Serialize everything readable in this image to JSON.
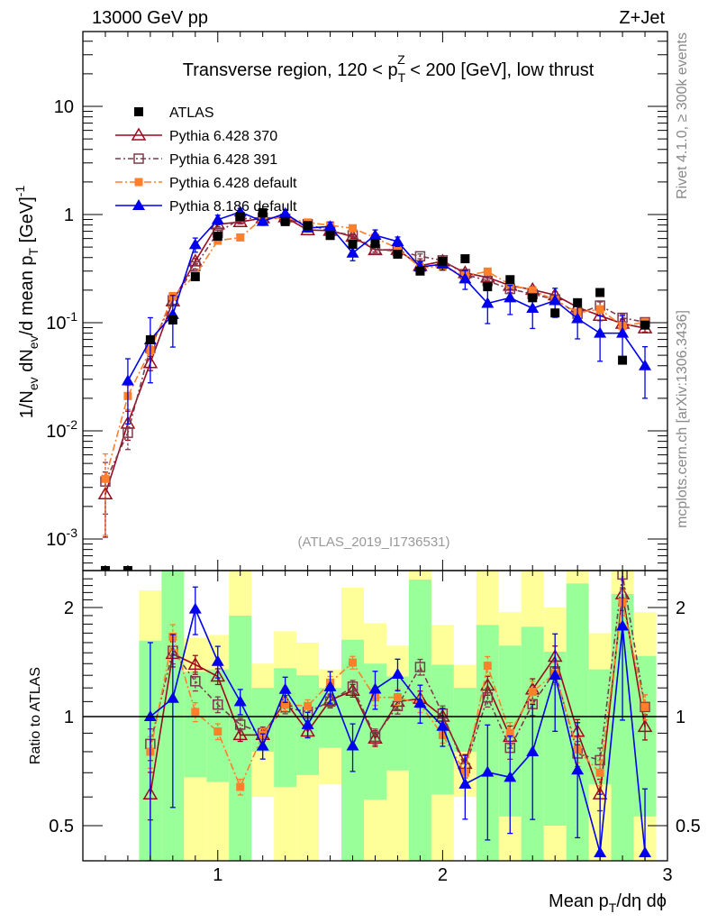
{
  "header": {
    "left": "13000 GeV pp",
    "right": "Z+Jet"
  },
  "side_text": {
    "rivet": "Rivet 4.1.0, ≥ 300k events",
    "mcplots": "mcplots.cern.ch [arXiv:1306.3436]"
  },
  "chart_data": {
    "type": "line",
    "title": {
      "pre": "Transverse region, 120 < p",
      "sub": "T",
      "sup": "Z",
      "post": " < 200 [GeV], low thrust"
    },
    "analysis_id": "(ATLAS_2019_I1736531)",
    "xlabel": {
      "pre": "Mean p",
      "sub": "T",
      "post": "/dη dϕ"
    },
    "ylabel": {
      "a": "1/N",
      "a_sub": "ev",
      "b": " dN",
      "b_sub": "ev",
      "c": "/d mean p",
      "c_sub": "T",
      "d": " [GeV]",
      "d_sup": "-1"
    },
    "ratio_ylabel": "Ratio to ATLAS",
    "xlim": [
      0.4,
      3.0
    ],
    "ylim": [
      0.00052,
      49
    ],
    "yscale": "log",
    "ratio_ylim": [
      0.4,
      2.5
    ],
    "ratio_yscale": "log",
    "x_ticks": [
      "1",
      "2",
      "3"
    ],
    "x_tick_values": [
      1,
      2,
      3
    ],
    "y_ticks": [
      {
        "value": 10,
        "base": "10",
        "exp": ""
      },
      {
        "value": 1,
        "base": "1",
        "exp": ""
      },
      {
        "value": 0.1,
        "base": "10",
        "exp": "-1"
      },
      {
        "value": 0.01,
        "base": "10",
        "exp": "-2"
      },
      {
        "value": 0.001,
        "base": "10",
        "exp": "-3"
      }
    ],
    "ratio_ticks": [
      {
        "value": 2,
        "label": "2"
      },
      {
        "value": 1,
        "label": "1"
      },
      {
        "value": 0.5,
        "label": "0.5"
      }
    ],
    "legend_position": "top-left",
    "x": [
      0.5,
      0.6,
      0.7,
      0.8,
      0.9,
      1.0,
      1.1,
      1.2,
      1.3,
      1.4,
      1.5,
      1.6,
      1.7,
      1.8,
      1.9,
      2.0,
      2.1,
      2.2,
      2.3,
      2.4,
      2.5,
      2.6,
      2.7,
      2.8,
      2.9
    ],
    "series": [
      {
        "name": "ATLAS",
        "style": "data",
        "color": "#000000",
        "values": [
          0.0004,
          0.0004,
          0.0695,
          0.106,
          0.266,
          0.63,
          0.96,
          1.04,
          0.86,
          0.79,
          0.64,
          0.53,
          0.54,
          0.43,
          0.3,
          0.37,
          0.39,
          0.215,
          0.25,
          0.17,
          0.123,
          0.153,
          0.19,
          0.045,
          0.095
        ]
      },
      {
        "name": "Pythia 6.428 370",
        "style": "tri-open",
        "color": "#9b0a1e",
        "dash": "",
        "values": [
          0.0026,
          0.0117,
          0.0424,
          0.158,
          0.37,
          0.813,
          0.854,
          0.926,
          0.946,
          0.719,
          0.71,
          0.625,
          0.47,
          0.473,
          0.336,
          0.37,
          0.289,
          0.262,
          0.22,
          0.202,
          0.18,
          0.139,
          0.116,
          0.098,
          0.089
        ],
        "rel_err": [
          0.6,
          0.3,
          0.15,
          0.08,
          0.06,
          0.05,
          0.04,
          0.04,
          0.04,
          0.04,
          0.04,
          0.04,
          0.05,
          0.05,
          0.05,
          0.05,
          0.06,
          0.06,
          0.07,
          0.07,
          0.07,
          0.08,
          0.1,
          0.1,
          0.08
        ]
      },
      {
        "name": "Pythia 6.428 391",
        "style": "sq-open",
        "color": "#7d3b4c",
        "dash": "6,3,2,3",
        "values": [
          0.0034,
          0.0096,
          0.0584,
          0.161,
          0.333,
          0.68,
          0.912,
          0.936,
          0.912,
          0.814,
          0.704,
          0.641,
          0.475,
          0.46,
          0.411,
          0.377,
          0.281,
          0.243,
          0.205,
          0.184,
          0.164,
          0.121,
          0.144,
          0.111,
          0.101
        ],
        "rel_err": [
          0.5,
          0.3,
          0.1,
          0.08,
          0.06,
          0.05,
          0.04,
          0.04,
          0.04,
          0.04,
          0.04,
          0.04,
          0.05,
          0.05,
          0.05,
          0.05,
          0.06,
          0.06,
          0.07,
          0.07,
          0.07,
          0.08,
          0.08,
          0.08,
          0.08
        ]
      },
      {
        "name": "Pythia 6.428 default",
        "style": "sq-fill",
        "color": "#ff7f2a",
        "dash": "8,3,2,3",
        "values": [
          0.0036,
          0.021,
          0.0556,
          0.176,
          0.274,
          0.573,
          0.614,
          0.926,
          0.929,
          0.845,
          0.794,
          0.747,
          0.61,
          0.486,
          0.324,
          0.329,
          0.273,
          0.297,
          0.225,
          0.199,
          0.162,
          0.124,
          0.133,
          0.093,
          0.101
        ],
        "rel_err": [
          0.7,
          0.25,
          0.1,
          0.08,
          0.06,
          0.05,
          0.05,
          0.04,
          0.04,
          0.04,
          0.04,
          0.04,
          0.05,
          0.05,
          0.05,
          0.05,
          0.06,
          0.06,
          0.07,
          0.07,
          0.07,
          0.08,
          0.08,
          0.08,
          0.08
        ]
      },
      {
        "name": "Pythia 8.186 default",
        "style": "tri-fill",
        "color": "#0000ee",
        "dash": "",
        "values": [
          null,
          0.029,
          0.0695,
          0.119,
          0.527,
          0.895,
          1.056,
          0.863,
          1.023,
          0.751,
          0.774,
          0.44,
          0.643,
          0.563,
          0.327,
          0.348,
          0.254,
          0.151,
          0.17,
          0.136,
          0.16,
          0.109,
          0.08,
          0.08,
          0.04
        ],
        "rel_err": [
          0.5,
          0.6,
          0.6,
          0.5,
          0.15,
          0.1,
          0.08,
          0.08,
          0.08,
          0.08,
          0.1,
          0.15,
          0.12,
          0.1,
          0.12,
          0.12,
          0.2,
          0.35,
          0.3,
          0.35,
          0.3,
          0.35,
          0.45,
          0.45,
          0.5
        ]
      }
    ],
    "uncertainty_bands": {
      "bins": [
        0.7,
        0.8,
        0.9,
        1.0,
        1.1,
        1.2,
        1.3,
        1.4,
        1.5,
        1.6,
        1.7,
        1.8,
        1.9,
        2.0,
        2.1,
        2.2,
        2.3,
        2.4,
        2.5,
        2.6,
        2.7,
        2.8,
        2.9
      ],
      "inner_color": "#99ff99",
      "outer_color": "#ffff99",
      "inner": [
        [
          0.3,
          1.62
        ],
        [
          0.3,
          3.0
        ],
        [
          0.68,
          1.33
        ],
        [
          0.66,
          1.35
        ],
        [
          0.3,
          1.9
        ],
        [
          0.8,
          1.2
        ],
        [
          0.64,
          1.36
        ],
        [
          0.69,
          1.3
        ],
        [
          0.82,
          1.2
        ],
        [
          0.3,
          1.63
        ],
        [
          0.59,
          1.4
        ],
        [
          0.71,
          1.29
        ],
        [
          0.3,
          2.39
        ],
        [
          0.61,
          1.39
        ],
        [
          0.8,
          1.2
        ],
        [
          0.3,
          1.79
        ],
        [
          0.53,
          1.57
        ],
        [
          0.3,
          1.77
        ],
        [
          0.5,
          1.51
        ],
        [
          0.3,
          2.33
        ],
        [
          0.65,
          1.35
        ],
        [
          0.3,
          2.18
        ],
        [
          0.53,
          1.47
        ]
      ],
      "outer": [
        [
          0.3,
          2.23
        ],
        [
          0.3,
          3.0
        ],
        [
          0.3,
          1.65
        ],
        [
          0.3,
          1.68
        ],
        [
          0.3,
          3.0
        ],
        [
          0.6,
          1.4
        ],
        [
          0.3,
          1.72
        ],
        [
          0.3,
          1.6
        ],
        [
          0.65,
          1.35
        ],
        [
          0.3,
          2.27
        ],
        [
          0.3,
          1.81
        ],
        [
          0.3,
          1.57
        ],
        [
          0.3,
          3.0
        ],
        [
          0.3,
          1.79
        ],
        [
          0.6,
          1.39
        ],
        [
          0.3,
          3.0
        ],
        [
          0.3,
          1.94
        ],
        [
          0.3,
          3.0
        ],
        [
          0.3,
          2.0
        ],
        [
          0.3,
          3.0
        ],
        [
          0.3,
          1.7
        ],
        [
          0.3,
          3.0
        ],
        [
          0.3,
          1.94
        ]
      ]
    }
  }
}
